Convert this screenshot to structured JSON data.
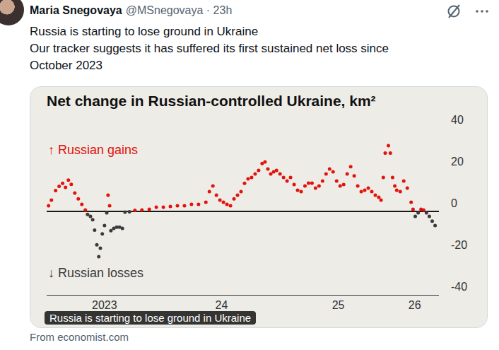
{
  "tweet": {
    "author": "Maria Snegovaya",
    "handle_line": "@MSnegovaya · 23h",
    "text_lines": [
      "Russia is starting to lose ground in Ukraine",
      "Our tracker suggests it has suffered its first sustained net loss since",
      "October 2023"
    ],
    "image_caption": "Russia is starting to lose ground in Ukraine",
    "source": "From economist.com"
  },
  "chart_data": {
    "type": "scatter",
    "title": "Net change in Russian-controlled Ukraine, km²",
    "x": [
      "2023-01-07",
      "2023-01-16",
      "2023-01-29",
      "2023-02-09",
      "2023-02-20",
      "2023-03-01",
      "2023-03-10",
      "2023-03-19",
      "2023-03-30",
      "2023-04-10",
      "2023-04-21",
      "2023-05-02",
      "2023-05-09",
      "2023-05-18",
      "2023-05-25",
      "2023-05-31",
      "2023-06-07",
      "2023-06-13",
      "2023-06-18",
      "2023-06-24",
      "2023-07-01",
      "2023-07-08",
      "2023-07-12",
      "2023-07-17",
      "2023-07-21",
      "2023-07-30",
      "2023-08-08",
      "2023-08-17",
      "2023-08-26",
      "2023-09-03",
      "2023-09-17",
      "2023-10-04",
      "2023-10-26",
      "2023-11-18",
      "2023-12-10",
      "2024-01-01",
      "2024-01-23",
      "2024-02-14",
      "2024-03-07",
      "2024-03-29",
      "2024-04-20",
      "2024-05-13",
      "2024-05-24",
      "2024-06-04",
      "2024-06-15",
      "2024-06-26",
      "2024-07-07",
      "2024-07-18",
      "2024-07-29",
      "2024-08-09",
      "2024-08-20",
      "2024-08-31",
      "2024-09-11",
      "2024-09-22",
      "2024-10-03",
      "2024-10-14",
      "2024-10-25",
      "2024-11-05",
      "2024-11-14",
      "2024-11-23",
      "2024-12-02",
      "2024-12-11",
      "2024-12-20",
      "2024-12-31",
      "2025-01-11",
      "2025-01-22",
      "2025-02-02",
      "2025-02-13",
      "2025-02-24",
      "2025-03-07",
      "2025-03-19",
      "2025-03-30",
      "2025-04-10",
      "2025-04-21",
      "2025-05-02",
      "2025-05-13",
      "2025-05-24",
      "2025-06-04",
      "2025-06-15",
      "2025-06-26",
      "2025-07-07",
      "2025-07-18",
      "2025-07-29",
      "2025-08-09",
      "2025-08-20",
      "2025-08-31",
      "2025-09-11",
      "2025-09-22",
      "2025-10-03",
      "2025-10-14",
      "2025-10-25",
      "2025-11-05",
      "2025-11-12",
      "2025-11-19",
      "2025-11-25",
      "2025-12-05",
      "2025-12-11",
      "2025-12-18",
      "2025-12-25",
      "2025-12-31",
      "2026-01-11",
      "2026-01-22",
      "2026-02-02",
      "2026-02-14",
      "2026-02-20",
      "2026-02-27",
      "2026-03-08",
      "2026-03-17",
      "2026-03-25",
      "2026-04-03",
      "2026-04-12",
      "2026-04-21",
      "2026-04-30"
    ],
    "series": [
      {
        "name": "↑ Russian gains",
        "color": "#e3120b",
        "values": [
          2.7,
          5.4,
          10,
          12,
          13.5,
          11.5,
          15,
          13,
          8.8,
          6,
          3.4,
          0.7,
          null,
          null,
          null,
          null,
          null,
          null,
          null,
          null,
          null,
          null,
          7.8,
          2.7,
          null,
          null,
          null,
          null,
          null,
          null,
          null,
          0.5,
          0.7,
          1,
          2,
          2,
          2.4,
          2.7,
          2.7,
          3.4,
          3.4,
          4.4,
          9.5,
          12.2,
          7.8,
          5.4,
          4.4,
          3.4,
          2.7,
          6,
          7.8,
          9.5,
          13.5,
          15.6,
          16.3,
          18,
          19.7,
          23,
          23.7,
          20.3,
          18,
          19,
          19.7,
          18,
          16.3,
          14.6,
          16.3,
          12.9,
          10.2,
          9.5,
          12.2,
          13.6,
          13.6,
          11.2,
          12.2,
          14.6,
          18,
          20.3,
          19,
          14.6,
          12.2,
          12.9,
          18,
          21.4,
          17,
          12.2,
          9.5,
          10.2,
          11.2,
          9.5,
          7.8,
          6.8,
          5.4,
          16.3,
          28,
          31.5,
          28,
          16.3,
          12.2,
          10.2,
          9.5,
          14.6,
          11.2,
          4.4,
          1,
          null,
          null,
          1,
          0.7,
          null,
          null,
          null,
          null
        ]
      },
      {
        "name": "↓ Russian losses",
        "color": "#3b3b3b",
        "values": [
          null,
          null,
          null,
          null,
          null,
          null,
          null,
          null,
          null,
          null,
          null,
          null,
          -1.4,
          -2.4,
          -4,
          -9,
          -16,
          -21.7,
          -17.6,
          -10.8,
          -6.8,
          -0.7,
          null,
          null,
          -9.2,
          -8.1,
          -7.5,
          -7.5,
          -8.1,
          -0.3,
          -0.2,
          null,
          null,
          null,
          null,
          null,
          null,
          null,
          null,
          null,
          null,
          null,
          null,
          null,
          null,
          null,
          null,
          null,
          null,
          null,
          null,
          null,
          null,
          null,
          null,
          null,
          null,
          null,
          null,
          null,
          null,
          null,
          null,
          null,
          null,
          null,
          null,
          null,
          null,
          null,
          null,
          null,
          null,
          null,
          null,
          null,
          null,
          null,
          null,
          null,
          null,
          null,
          null,
          null,
          null,
          null,
          null,
          null,
          null,
          null,
          null,
          null,
          null,
          null,
          null,
          null,
          null,
          null,
          null,
          null,
          null,
          null,
          null,
          null,
          null,
          -2.4,
          -0.7,
          null,
          null,
          -0.7,
          -2.4,
          -4.7,
          -6.8
        ]
      }
    ],
    "xlim": [
      "2023-01-01",
      "2026-05-12"
    ],
    "xticks": [
      {
        "value": "2023-07-01",
        "label": "2023"
      },
      {
        "value": "2024-07-01",
        "label": "24"
      },
      {
        "value": "2025-07-01",
        "label": "25"
      },
      {
        "value": "2026-02-25",
        "label": "26"
      }
    ],
    "ylim": [
      -40,
      40
    ],
    "yticks": [
      -40,
      -20,
      0,
      20,
      40
    ],
    "grid": false,
    "marker": "circle"
  }
}
